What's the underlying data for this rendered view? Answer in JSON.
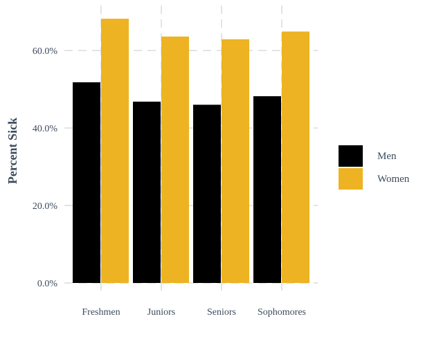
{
  "chart_data": {
    "type": "bar",
    "title": "",
    "xlabel": "",
    "ylabel": "Percent Sick",
    "categories": [
      "Freshmen",
      "Juniors",
      "Seniors",
      "Sophomores"
    ],
    "series": [
      {
        "name": "Men",
        "color": "#000000",
        "values": [
          51.8,
          46.8,
          46.0,
          48.2
        ]
      },
      {
        "name": "Women",
        "color": "#EDB322",
        "values": [
          68.2,
          63.6,
          62.9,
          64.9
        ]
      }
    ],
    "yticks": [
      0,
      20,
      40,
      60
    ],
    "ytick_labels": [
      "0.0%",
      "20.0%",
      "40.0%",
      "60.0%"
    ],
    "ylim": [
      0,
      71.5
    ],
    "grid": true,
    "legend_position": "right"
  }
}
